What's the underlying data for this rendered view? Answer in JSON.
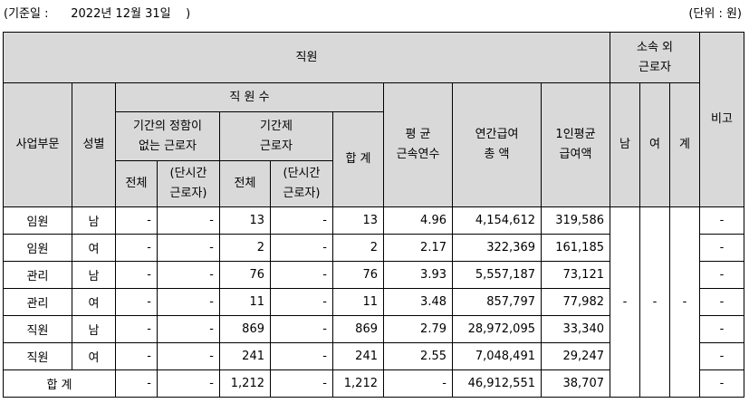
{
  "caption": {
    "left": "(기준일 :      2022년 12월 31일    )",
    "right": "(단위 : 원)"
  },
  "header": {
    "employees": "직원",
    "non_affiliated": "소속 외\n근로자",
    "remarks": "비고",
    "division": "사업부문",
    "gender": "성별",
    "headcount": "직 원 수",
    "avg_tenure": "평 균\n근속연수",
    "annual_pay_total": "연간급여\n총 액",
    "avg_pay_per_person": "1인평균\n급여액",
    "male": "남",
    "female": "여",
    "subtotal": "계",
    "indefinite_term": "기간의 정함이\n없는 근로자",
    "fixed_term": "기간제\n근로자",
    "total": "합 계",
    "all_1": "전체",
    "part_time_1": "(단시간\n근로자)",
    "all_2": "전체",
    "part_time_2": "(단시간\n근로자)"
  },
  "rows": [
    {
      "division": "임원",
      "gender": "남",
      "indef_all": "-",
      "indef_part": "-",
      "fixed_all": "13",
      "fixed_part": "-",
      "total": "13",
      "tenure": "4.96",
      "annual_pay": "4,154,612",
      "avg_pay": "319,586",
      "remarks": "-"
    },
    {
      "division": "임원",
      "gender": "여",
      "indef_all": "-",
      "indef_part": "-",
      "fixed_all": "2",
      "fixed_part": "-",
      "total": "2",
      "tenure": "2.17",
      "annual_pay": "322,369",
      "avg_pay": "161,185",
      "remarks": "-"
    },
    {
      "division": "관리",
      "gender": "남",
      "indef_all": "-",
      "indef_part": "-",
      "fixed_all": "76",
      "fixed_part": "-",
      "total": "76",
      "tenure": "3.93",
      "annual_pay": "5,557,187",
      "avg_pay": "73,121",
      "remarks": "-"
    },
    {
      "division": "관리",
      "gender": "여",
      "indef_all": "-",
      "indef_part": "-",
      "fixed_all": "11",
      "fixed_part": "-",
      "total": "11",
      "tenure": "3.48",
      "annual_pay": "857,797",
      "avg_pay": "77,982",
      "remarks": "-"
    },
    {
      "division": "직원",
      "gender": "남",
      "indef_all": "-",
      "indef_part": "-",
      "fixed_all": "869",
      "fixed_part": "-",
      "total": "869",
      "tenure": "2.79",
      "annual_pay": "28,972,095",
      "avg_pay": "33,340",
      "remarks": "-"
    },
    {
      "division": "직원",
      "gender": "여",
      "indef_all": "-",
      "indef_part": "-",
      "fixed_all": "241",
      "fixed_part": "-",
      "total": "241",
      "tenure": "2.55",
      "annual_pay": "7,048,491",
      "avg_pay": "29,247",
      "remarks": "-"
    }
  ],
  "non_affiliated_values": {
    "male": "-",
    "female": "-",
    "subtotal": "-"
  },
  "total_row": {
    "label": "합 계",
    "indef_all": "-",
    "indef_part": "-",
    "fixed_all": "1,212",
    "fixed_part": "-",
    "total": "1,212",
    "tenure": "-",
    "annual_pay": "46,912,551",
    "avg_pay": "38,707",
    "remarks": "-"
  }
}
